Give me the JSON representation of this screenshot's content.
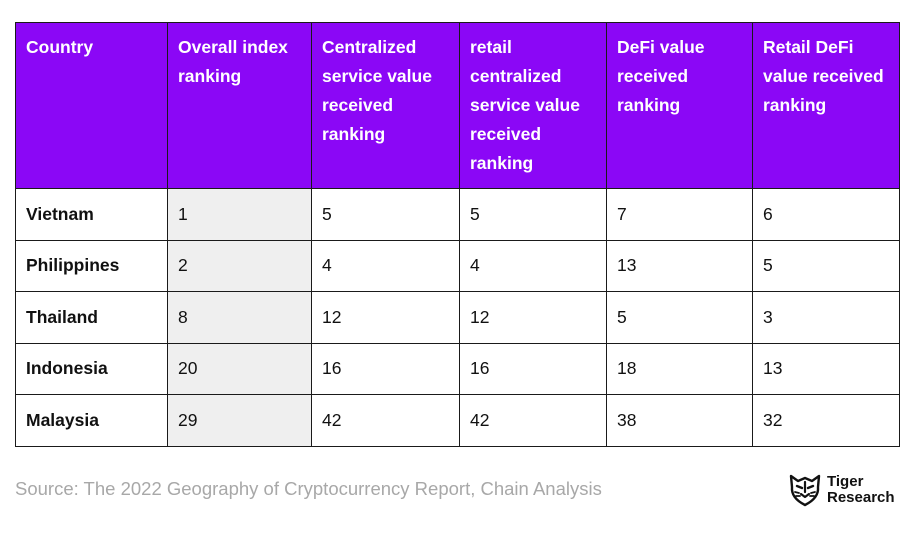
{
  "chart_data": {
    "type": "table",
    "columns": [
      "Country",
      "Overall index ranking",
      "Centralized service value received ranking",
      "retail centralized service value received ranking",
      "DeFi value received ranking",
      "Retail DeFi value received ranking"
    ],
    "rows": [
      {
        "country": "Vietnam",
        "values": [
          1,
          5,
          5,
          7,
          6
        ]
      },
      {
        "country": "Philippines",
        "values": [
          2,
          4,
          4,
          13,
          5
        ]
      },
      {
        "country": "Thailand",
        "values": [
          8,
          12,
          12,
          5,
          3
        ]
      },
      {
        "country": "Indonesia",
        "values": [
          20,
          16,
          16,
          18,
          13
        ]
      },
      {
        "country": "Malaysia",
        "values": [
          29,
          42,
          42,
          38,
          32
        ]
      }
    ],
    "header_color": "#8b07f6",
    "highlight_column_color": "#efefef"
  },
  "source": "Source: The 2022 Geography of Cryptocurrency Report, Chain Analysis",
  "logo": {
    "icon": "tiger-icon",
    "line1": "Tiger",
    "line2": "Research"
  }
}
